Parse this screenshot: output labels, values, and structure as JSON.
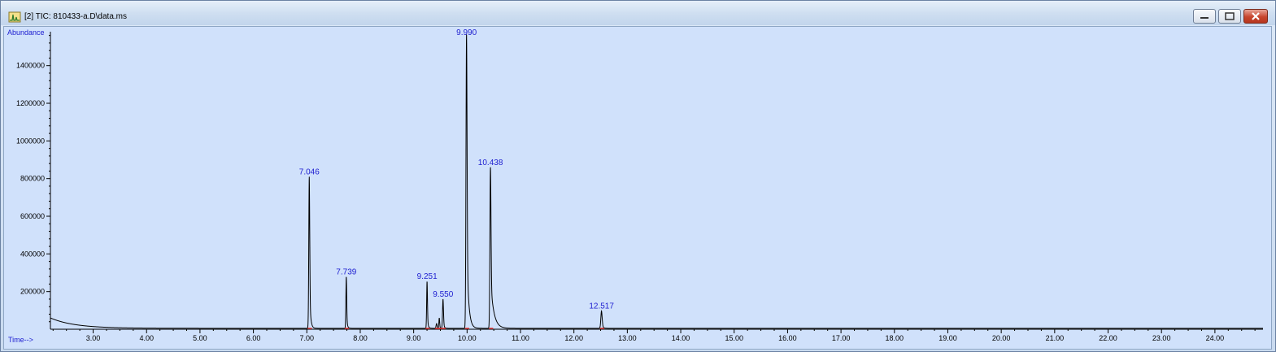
{
  "window": {
    "title": "[2] TIC: 810433-a.D\\data.ms",
    "controls": [
      "minimize",
      "maximize",
      "close"
    ]
  },
  "chart_data": {
    "type": "line",
    "title": "",
    "ylabel": "Abundance",
    "xlabel": "Time-->",
    "xlim": [
      2.2,
      24.9
    ],
    "ylim": [
      0,
      1580000
    ],
    "x_ticks": [
      3.0,
      4.0,
      5.0,
      6.0,
      7.0,
      8.0,
      9.0,
      10.0,
      11.0,
      12.0,
      13.0,
      14.0,
      15.0,
      16.0,
      17.0,
      18.0,
      19.0,
      20.0,
      21.0,
      22.0,
      23.0,
      24.0
    ],
    "x_tick_labels": [
      "3.00",
      "4.00",
      "5.00",
      "6.00",
      "7.00",
      "8.00",
      "9.00",
      "10.00",
      "11.00",
      "12.00",
      "13.00",
      "14.00",
      "15.00",
      "16.00",
      "17.00",
      "18.00",
      "19.00",
      "20.00",
      "21.00",
      "22.00",
      "23.00",
      "24.00"
    ],
    "y_ticks": [
      200000,
      400000,
      600000,
      800000,
      1000000,
      1200000,
      1400000
    ],
    "y_tick_labels": [
      "200000",
      "400000",
      "600000",
      "800000",
      "1000000",
      "1200000",
      "1400000"
    ],
    "baseline": 5000,
    "peaks": [
      {
        "rt": 7.046,
        "label": "7.046",
        "height": 805000,
        "width": 0.018,
        "tail": 0.02
      },
      {
        "rt": 7.739,
        "label": "7.739",
        "height": 275000,
        "width": 0.015,
        "tail": 0.015
      },
      {
        "rt": 9.251,
        "label": "9.251",
        "height": 250000,
        "width": 0.015,
        "tail": 0.015
      },
      {
        "rt": 9.43,
        "label": "",
        "height": 25000,
        "width": 0.02,
        "tail": 0.01
      },
      {
        "rt": 9.48,
        "label": "",
        "height": 55000,
        "width": 0.015,
        "tail": 0.01
      },
      {
        "rt": 9.55,
        "label": "9.550",
        "height": 155000,
        "width": 0.018,
        "tail": 0.015
      },
      {
        "rt": 9.99,
        "label": "9.990",
        "height": 1560000,
        "width": 0.02,
        "tail": 0.035
      },
      {
        "rt": 10.438,
        "label": "10.438",
        "height": 855000,
        "width": 0.02,
        "tail": 0.06
      },
      {
        "rt": 12.517,
        "label": "12.517",
        "height": 92000,
        "width": 0.025,
        "tail": 0.02
      }
    ],
    "solvent_front": {
      "start": 2.2,
      "height": 55000,
      "decay": 0.45
    },
    "colors": {
      "background": "#d0e1fb",
      "trace": "#000000",
      "peak_label": "#2020d0",
      "axis_title": "#2020d0",
      "integration_marker": "#e03030"
    }
  }
}
